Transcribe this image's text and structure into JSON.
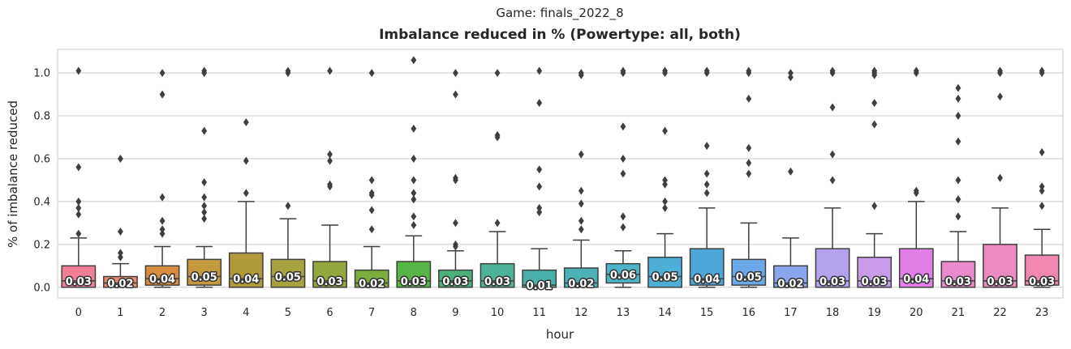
{
  "chart_data": {
    "type": "box",
    "suptitle": "Game: finals_2022_8",
    "title": "Imbalance reduced in % (Powertype: all, both)",
    "xlabel": "hour",
    "ylabel": "% of imbalance reduced",
    "ylim": [
      -0.05,
      1.11
    ],
    "yticks": [
      "0.0",
      "0.2",
      "0.4",
      "0.6",
      "0.8",
      "1.0"
    ],
    "grid": "horizontal",
    "categories": [
      "0",
      "1",
      "2",
      "3",
      "4",
      "5",
      "6",
      "7",
      "8",
      "9",
      "10",
      "11",
      "12",
      "13",
      "14",
      "15",
      "16",
      "17",
      "18",
      "19",
      "20",
      "21",
      "22",
      "23"
    ],
    "boxes": [
      {
        "q1": 0.0,
        "median": 0.03,
        "q3": 0.1,
        "whislo": 0.0,
        "whishi": 0.23,
        "outliers": [
          0.25,
          0.34,
          0.37,
          0.4,
          0.56,
          1.01
        ],
        "label": "0.03",
        "color": "#f37e98"
      },
      {
        "q1": 0.0,
        "median": 0.02,
        "q3": 0.05,
        "whislo": 0.0,
        "whishi": 0.11,
        "outliers": [
          0.14,
          0.16,
          0.26,
          0.6
        ],
        "label": "0.02",
        "color": "#e98b6f"
      },
      {
        "q1": 0.01,
        "median": 0.04,
        "q3": 0.1,
        "whislo": 0.0,
        "whishi": 0.19,
        "outliers": [
          0.25,
          0.27,
          0.31,
          0.42,
          0.9,
          1.0
        ],
        "label": "0.04",
        "color": "#d88c3d"
      },
      {
        "q1": 0.01,
        "median": 0.05,
        "q3": 0.13,
        "whislo": 0.0,
        "whishi": 0.19,
        "outliers": [
          0.32,
          0.35,
          0.38,
          0.42,
          0.49,
          0.73,
          1.0,
          1.01
        ],
        "label": "0.05",
        "color": "#c59a3e"
      },
      {
        "q1": 0.0,
        "median": 0.04,
        "q3": 0.16,
        "whislo": 0.0,
        "whishi": 0.4,
        "outliers": [
          0.44,
          0.59,
          0.77
        ],
        "label": "0.04",
        "color": "#b19a3c"
      },
      {
        "q1": 0.0,
        "median": 0.05,
        "q3": 0.13,
        "whislo": 0.0,
        "whishi": 0.32,
        "outliers": [
          0.38,
          1.0,
          1.01
        ],
        "label": "0.05",
        "color": "#a5a23f"
      },
      {
        "q1": 0.0,
        "median": 0.03,
        "q3": 0.12,
        "whislo": 0.0,
        "whishi": 0.29,
        "outliers": [
          0.47,
          0.48,
          0.59,
          0.62,
          1.01
        ],
        "label": "0.03",
        "color": "#93a73f"
      },
      {
        "q1": 0.0,
        "median": 0.02,
        "q3": 0.08,
        "whislo": 0.0,
        "whishi": 0.19,
        "outliers": [
          0.27,
          0.36,
          0.43,
          0.44,
          0.5,
          1.0
        ],
        "label": "0.02",
        "color": "#7aac3e"
      },
      {
        "q1": 0.0,
        "median": 0.03,
        "q3": 0.12,
        "whislo": 0.0,
        "whishi": 0.24,
        "outliers": [
          0.29,
          0.33,
          0.41,
          0.44,
          0.5,
          0.6,
          0.74,
          1.06
        ],
        "label": "0.03",
        "color": "#57b446"
      },
      {
        "q1": 0.0,
        "median": 0.03,
        "q3": 0.08,
        "whislo": 0.0,
        "whishi": 0.17,
        "outliers": [
          0.19,
          0.2,
          0.3,
          0.5,
          0.51,
          0.9,
          1.0
        ],
        "label": "0.03",
        "color": "#4cb07a"
      },
      {
        "q1": 0.0,
        "median": 0.03,
        "q3": 0.11,
        "whislo": 0.0,
        "whishi": 0.26,
        "outliers": [
          0.3,
          0.7,
          0.71,
          1.0
        ],
        "label": "0.03",
        "color": "#4db298"
      },
      {
        "q1": 0.0,
        "median": 0.01,
        "q3": 0.08,
        "whislo": 0.0,
        "whishi": 0.18,
        "outliers": [
          0.35,
          0.37,
          0.47,
          0.55,
          0.86,
          1.01
        ],
        "label": "0.01",
        "color": "#4aafa8"
      },
      {
        "q1": 0.0,
        "median": 0.02,
        "q3": 0.09,
        "whislo": 0.0,
        "whishi": 0.22,
        "outliers": [
          0.27,
          0.31,
          0.39,
          0.45,
          0.62,
          0.99,
          1.0
        ],
        "label": "0.02",
        "color": "#4cb1b6"
      },
      {
        "q1": 0.02,
        "median": 0.06,
        "q3": 0.11,
        "whislo": 0.0,
        "whishi": 0.17,
        "outliers": [
          0.28,
          0.33,
          0.53,
          0.6,
          0.75,
          1.0,
          1.01
        ],
        "label": "0.06",
        "color": "#4eb5c8"
      },
      {
        "q1": 0.0,
        "median": 0.05,
        "q3": 0.14,
        "whislo": 0.0,
        "whishi": 0.25,
        "outliers": [
          0.37,
          0.4,
          0.48,
          0.5,
          0.73,
          1.0,
          1.01
        ],
        "label": "0.05",
        "color": "#4dafd5"
      },
      {
        "q1": 0.01,
        "median": 0.04,
        "q3": 0.18,
        "whislo": 0.0,
        "whishi": 0.37,
        "outliers": [
          0.44,
          0.48,
          0.53,
          0.66,
          1.0,
          1.01
        ],
        "label": "0.04",
        "color": "#4fa6d8"
      },
      {
        "q1": 0.01,
        "median": 0.05,
        "q3": 0.13,
        "whislo": 0.0,
        "whishi": 0.3,
        "outliers": [
          0.53,
          0.58,
          0.65,
          0.88,
          1.0,
          1.01
        ],
        "label": "0.05",
        "color": "#6aa8ea"
      },
      {
        "q1": 0.0,
        "median": 0.02,
        "q3": 0.1,
        "whislo": 0.0,
        "whishi": 0.23,
        "outliers": [
          0.54,
          0.98,
          1.0
        ],
        "label": "0.02",
        "color": "#8aa4ee"
      },
      {
        "q1": 0.0,
        "median": 0.03,
        "q3": 0.18,
        "whislo": 0.0,
        "whishi": 0.37,
        "outliers": [
          0.5,
          0.62,
          0.84,
          1.0,
          1.01
        ],
        "label": "0.03",
        "color": "#b4a2ee"
      },
      {
        "q1": 0.0,
        "median": 0.03,
        "q3": 0.14,
        "whislo": 0.0,
        "whishi": 0.25,
        "outliers": [
          0.38,
          0.76,
          0.86,
          0.99,
          1.0,
          1.01
        ],
        "label": "0.03",
        "color": "#c99ce9"
      },
      {
        "q1": 0.0,
        "median": 0.04,
        "q3": 0.18,
        "whislo": 0.0,
        "whishi": 0.4,
        "outliers": [
          0.44,
          0.45,
          1.0,
          1.01
        ],
        "label": "0.04",
        "color": "#e17fe6"
      },
      {
        "q1": 0.0,
        "median": 0.03,
        "q3": 0.12,
        "whislo": 0.0,
        "whishi": 0.26,
        "outliers": [
          0.33,
          0.41,
          0.5,
          0.68,
          0.8,
          0.88,
          0.93
        ],
        "label": "0.03",
        "color": "#e98acb"
      },
      {
        "q1": 0.0,
        "median": 0.03,
        "q3": 0.2,
        "whislo": 0.0,
        "whishi": 0.37,
        "outliers": [
          0.51,
          0.89,
          1.0,
          1.01
        ],
        "label": "0.03",
        "color": "#ea8ac0"
      },
      {
        "q1": 0.01,
        "median": 0.03,
        "q3": 0.15,
        "whislo": 0.0,
        "whishi": 0.27,
        "outliers": [
          0.38,
          0.45,
          0.47,
          0.63,
          1.0,
          1.01
        ],
        "label": "0.03",
        "color": "#f087b0"
      }
    ]
  }
}
